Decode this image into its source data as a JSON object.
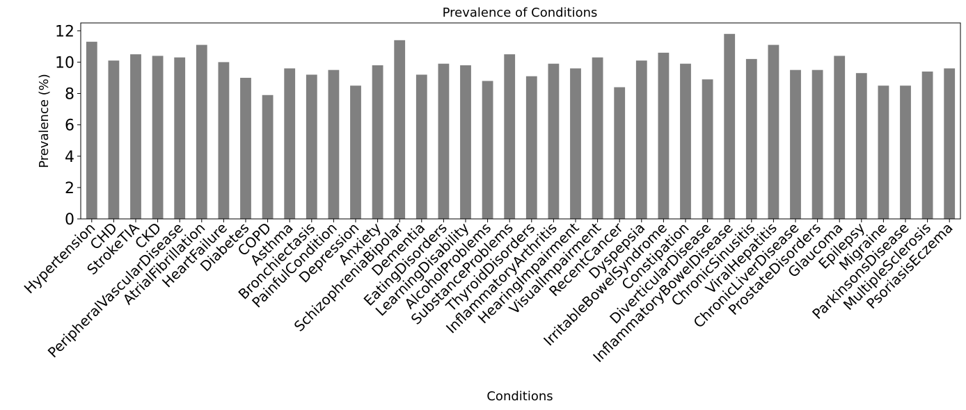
{
  "chart_data": {
    "type": "bar",
    "title": "Prevalence of Conditions",
    "xlabel": "Conditions",
    "ylabel": "Prevalence (%)",
    "ylim": [
      0,
      12.5
    ],
    "yticks": [
      0,
      2,
      4,
      6,
      8,
      10,
      12
    ],
    "bar_color": "#808080",
    "grid": false,
    "legend": "none",
    "categories": [
      "Hypertension",
      "CHD",
      "StrokeTIA",
      "CKD",
      "PeripheralVascularDisease",
      "AtrialFibrillation",
      "HeartFailure",
      "Diabetes",
      "COPD",
      "Asthma",
      "Bronchiectasis",
      "PainfulCondition",
      "Depression",
      "Anxiety",
      "SchizophreniaBipolar",
      "Dementia",
      "EatingDisorders",
      "LearningDisability",
      "AlcoholProblems",
      "SubstanceProblems",
      "ThyroidDisorders",
      "InflammatoryArthritis",
      "HearingImpairment",
      "VisualImpairment",
      "RecentCancer",
      "Dyspepsia",
      "IrritableBowelSyndrome",
      "Constipation",
      "DiverticularDisease",
      "InflammatoryBowelDisease",
      "ChronicSinusitis",
      "ViralHepatitis",
      "ChronicLiverDisease",
      "ProstateDisorders",
      "Glaucoma",
      "Epilepsy",
      "Migraine",
      "ParkinsonsDisease",
      "MultipleSclerosis",
      "PsoriasisEczema"
    ],
    "values": [
      11.3,
      10.1,
      10.5,
      10.4,
      10.3,
      11.1,
      10.0,
      9.0,
      7.9,
      9.6,
      9.2,
      9.5,
      8.5,
      9.8,
      11.4,
      9.2,
      9.9,
      9.8,
      8.8,
      10.5,
      9.1,
      9.9,
      9.6,
      10.3,
      8.4,
      10.1,
      10.6,
      9.9,
      8.9,
      11.8,
      10.2,
      11.1,
      9.5,
      9.5,
      10.4,
      9.3,
      8.5,
      8.5,
      9.4,
      9.6
    ]
  }
}
